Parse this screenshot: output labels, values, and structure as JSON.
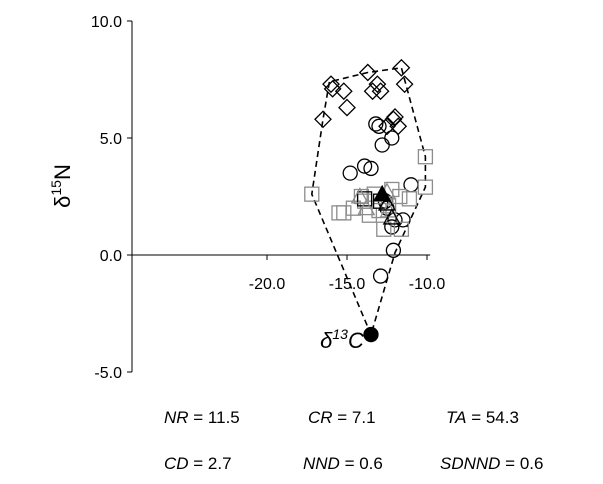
{
  "chart_data": {
    "type": "scatter",
    "title": "",
    "xlabel": {
      "prefix": "δ",
      "sup": "13",
      "suffix": "C"
    },
    "ylabel": {
      "prefix": "δ",
      "sup": "15",
      "suffix": "N"
    },
    "xlim": [
      -22.5,
      -9.8
    ],
    "ylim": [
      -5.0,
      10.0
    ],
    "x_ticks": [
      "-20.0",
      "-15.0",
      "-10.0"
    ],
    "x_tick_values": [
      -20.0,
      -15.0,
      -10.0
    ],
    "y_ticks": [
      "10.0",
      "5.0",
      "0.0",
      "-5.0"
    ],
    "y_tick_values": [
      10.0,
      5.0,
      0.0,
      -5.0
    ],
    "grid": false,
    "legend": "none",
    "series": [
      {
        "marker": "diamond",
        "fill": "none",
        "stroke": "#000000",
        "x": [
          -16.5,
          -16.0,
          -15.9,
          -15.2,
          -15.0,
          -13.7,
          -13.4,
          -13.1,
          -12.9,
          -12.5,
          -12.1,
          -12.0,
          -11.8,
          -11.6,
          -11.4
        ],
        "y": [
          5.8,
          7.3,
          7.1,
          7.0,
          6.3,
          7.8,
          7.0,
          7.3,
          7.0,
          5.5,
          5.8,
          5.9,
          5.5,
          8.0,
          7.3
        ]
      },
      {
        "marker": "circle",
        "fill": "none",
        "stroke": "#000000",
        "x": [
          -14.8,
          -13.9,
          -13.5,
          -13.2,
          -13.0,
          -12.8,
          -12.6,
          -12.5,
          -12.2,
          -12.0,
          -11.5,
          -11.0,
          -12.1,
          -12.9,
          -12.2
        ],
        "y": [
          3.5,
          3.8,
          3.7,
          5.6,
          5.5,
          4.7,
          2.3,
          2.0,
          5.0,
          1.5,
          1.5,
          3.0,
          0.2,
          -0.9,
          1.2
        ]
      },
      {
        "marker": "square",
        "fill": "none",
        "stroke": "#8c8c8c",
        "x": [
          -17.2,
          -15.5,
          -15.2,
          -14.6,
          -14.1,
          -13.9,
          -13.6,
          -13.3,
          -13.0,
          -12.7,
          -12.4,
          -12.2,
          -11.7,
          -11.6,
          -11.1,
          -10.1,
          -10.1
        ],
        "y": [
          2.6,
          1.8,
          1.8,
          2.0,
          2.5,
          2.3,
          1.7,
          2.6,
          1.9,
          1.1,
          2.1,
          2.8,
          2.5,
          1.1,
          2.4,
          2.9,
          4.2
        ]
      },
      {
        "marker": "square",
        "fill": "none",
        "stroke": "#000000",
        "x": [
          -13.9,
          -12.9
        ],
        "y": [
          2.4,
          2.3
        ]
      },
      {
        "marker": "triangle",
        "fill": "none",
        "stroke": "#8c8c8c",
        "x": [
          -14.2,
          -13.8,
          -12.5,
          -12.4
        ],
        "y": [
          2.5,
          2.0,
          2.7,
          1.9
        ]
      },
      {
        "marker": "triangle",
        "fill": "none",
        "stroke": "#000000",
        "x": [
          -12.5,
          -12.2
        ],
        "y": [
          2.2,
          1.6
        ]
      },
      {
        "marker": "triangle",
        "fill": "#000000",
        "stroke": "#000000",
        "x": [
          -12.8
        ],
        "y": [
          2.6
        ]
      },
      {
        "marker": "circle",
        "fill": "#000000",
        "stroke": "#000000",
        "x": [
          -13.5
        ],
        "y": [
          -3.4
        ]
      }
    ],
    "hull": [
      [
        -13.5,
        -3.4
      ],
      [
        -17.2,
        2.6
      ],
      [
        -16.5,
        5.8
      ],
      [
        -16.1,
        7.4
      ],
      [
        -13.7,
        7.8
      ],
      [
        -11.6,
        8.0
      ],
      [
        -10.1,
        4.2
      ],
      [
        -10.1,
        2.9
      ],
      [
        -12.0,
        0.1
      ],
      [
        -13.5,
        -3.4
      ]
    ]
  },
  "metrics": [
    {
      "key": "NR",
      "value": " = 11.5"
    },
    {
      "key": "CR",
      "value": " = 7.1"
    },
    {
      "key": "TA",
      "value": " = 54.3"
    },
    {
      "key": "CD",
      "value": " = 2.7"
    },
    {
      "key": "NND",
      "value": " = 0.6"
    },
    {
      "key": "SDNND",
      "value": " = 0.6"
    }
  ]
}
